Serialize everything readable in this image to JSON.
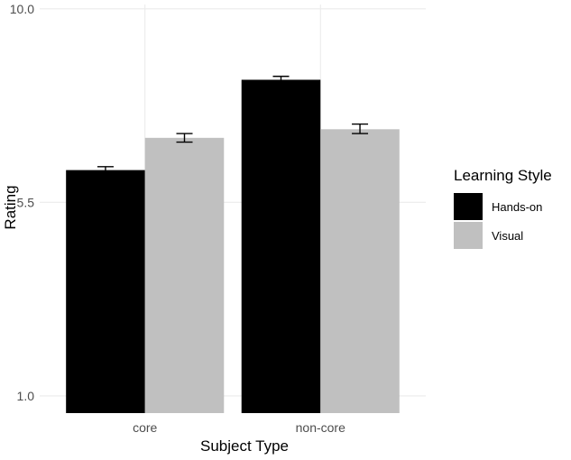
{
  "chart_data": {
    "type": "bar",
    "title": "",
    "xlabel": "Subject Type",
    "ylabel": "Rating",
    "categories": [
      "core",
      "non-core"
    ],
    "y_ticks": [
      1.0,
      5.5,
      10.0
    ],
    "y_tick_labels": [
      "1.0",
      "5.5",
      "10.0"
    ],
    "ylim": [
      0.6,
      10.1
    ],
    "grid": true,
    "legend": {
      "title": "Learning Style",
      "position": "right"
    },
    "series": [
      {
        "name": "Hands-on",
        "color": "#000000",
        "values": [
          6.25,
          8.35
        ],
        "err_low": [
          6.15,
          8.27
        ],
        "err_high": [
          6.33,
          8.43
        ]
      },
      {
        "name": "Visual",
        "color": "#c0c0c0",
        "values": [
          7.0,
          7.2
        ],
        "err_low": [
          6.9,
          7.1
        ],
        "err_high": [
          7.1,
          7.32
        ]
      }
    ]
  }
}
